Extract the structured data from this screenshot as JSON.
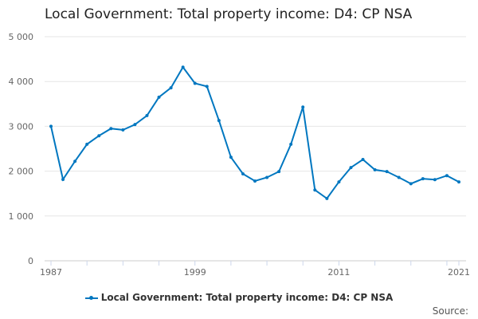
{
  "chart_data": {
    "type": "line",
    "title": "Local Government: Total property income: D4: CP NSA",
    "x": [
      1987,
      1988,
      1989,
      1990,
      1991,
      1992,
      1993,
      1994,
      1995,
      1996,
      1997,
      1998,
      1999,
      2000,
      2001,
      2002,
      2003,
      2004,
      2005,
      2006,
      2007,
      2008,
      2009,
      2010,
      2011,
      2012,
      2013,
      2014,
      2015,
      2016,
      2017,
      2018,
      2019,
      2020,
      2021
    ],
    "series": [
      {
        "name": "Local Government: Total property income: D4: CP NSA",
        "values": [
          3000,
          1815,
          2220,
          2600,
          2790,
          2950,
          2920,
          3040,
          3240,
          3650,
          3860,
          4320,
          3960,
          3890,
          3130,
          2310,
          1940,
          1780,
          1860,
          1990,
          2600,
          3430,
          1580,
          1390,
          1760,
          2080,
          2260,
          2030,
          1990,
          1860,
          1720,
          1830,
          1810,
          1900,
          1760
        ]
      }
    ],
    "xlabel": "",
    "ylabel": "",
    "ylim": [
      0,
      5000
    ],
    "yticks": [
      "0",
      "1 000",
      "2 000",
      "3 000",
      "4 000",
      "5 000"
    ],
    "xticks": [
      "1987",
      "1999",
      "2011",
      "2021"
    ],
    "grid": true,
    "legend": "bottom",
    "color": "#0077c0"
  },
  "source_label": "Source:"
}
